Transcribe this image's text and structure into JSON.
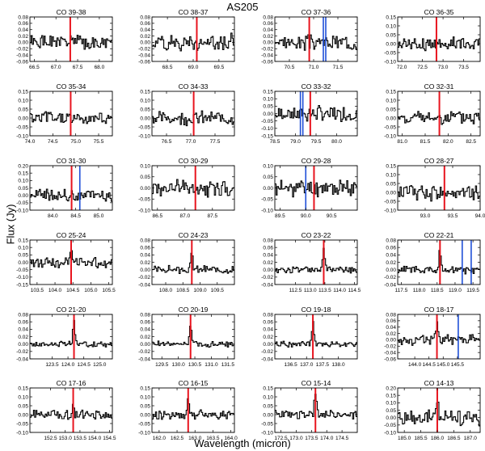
{
  "figure": {
    "title": "AS205",
    "xlabel": "Wavelength (micron)",
    "ylabel": "Flux (Jy)"
  },
  "colors": {
    "spectrum": "#000000",
    "co_line": "#e8141e",
    "blend_line": "#1f4fd8"
  },
  "chart_data": [
    {
      "type": "line",
      "title": "CO 39-38",
      "xlim": [
        66.4,
        68.3
      ],
      "ylim": [
        -0.06,
        0.08
      ],
      "xticks": [
        "66.5",
        "67.0",
        "67.5",
        "68.0"
      ],
      "yticks": [
        "-0.06",
        "-0.04",
        "-0.02",
        "0.00",
        "0.02",
        "0.04",
        "0.06",
        "0.08"
      ],
      "co_line": 67.33,
      "blends": [],
      "noise": 0.018,
      "peak": 0.0,
      "seed": 1
    },
    {
      "type": "line",
      "title": "CO 38-37",
      "xlim": [
        68.2,
        69.8
      ],
      "ylim": [
        -0.06,
        0.08
      ],
      "xticks": [
        "68.5",
        "69.0",
        "69.5"
      ],
      "yticks": [
        "-0.06",
        "-0.04",
        "-0.02",
        "0.00",
        "0.02",
        "0.04",
        "0.06",
        "0.08"
      ],
      "co_line": 69.07,
      "blends": [],
      "noise": 0.02,
      "peak": 0.0,
      "seed": 2
    },
    {
      "type": "line",
      "title": "CO 37-36",
      "xlim": [
        70.2,
        71.9
      ],
      "ylim": [
        -0.06,
        0.08
      ],
      "xticks": [
        "70.5",
        "71.0",
        "71.5"
      ],
      "yticks": [
        "-0.06",
        "-0.04",
        "-0.02",
        "0.00",
        "0.02",
        "0.04",
        "0.06",
        "0.08"
      ],
      "co_line": 70.91,
      "blends": [
        71.2,
        71.25
      ],
      "noise": 0.018,
      "peak": 0.0,
      "seed": 3
    },
    {
      "type": "line",
      "title": "CO 36-35",
      "xlim": [
        71.9,
        73.9
      ],
      "ylim": [
        -0.1,
        0.15
      ],
      "xticks": [
        "72.0",
        "72.5",
        "73.0",
        "73.5"
      ],
      "yticks": [
        "-0.10",
        "-0.05",
        "0.00",
        "0.05",
        "0.10",
        "0.15"
      ],
      "co_line": 72.84,
      "blends": [],
      "noise": 0.03,
      "peak": 0.0,
      "seed": 4
    },
    {
      "type": "line",
      "title": "CO 35-34",
      "xlim": [
        74.0,
        75.8
      ],
      "ylim": [
        -0.1,
        0.15
      ],
      "xticks": [
        "74.0",
        "74.5",
        "75.0",
        "75.5"
      ],
      "yticks": [
        "-0.10",
        "-0.05",
        "0.00",
        "0.05",
        "0.10",
        "0.15"
      ],
      "co_line": 74.89,
      "blends": [],
      "noise": 0.03,
      "peak": 0.0,
      "seed": 5
    },
    {
      "type": "line",
      "title": "CO 34-33",
      "xlim": [
        76.2,
        77.9
      ],
      "ylim": [
        -0.1,
        0.15
      ],
      "xticks": [
        "76.5",
        "77.0",
        "77.5"
      ],
      "yticks": [
        "-0.10",
        "-0.05",
        "0.00",
        "0.05",
        "0.10",
        "0.15"
      ],
      "co_line": 77.06,
      "blends": [],
      "noise": 0.03,
      "peak": 0.0,
      "seed": 6
    },
    {
      "type": "line",
      "title": "CO 33-32",
      "xlim": [
        78.5,
        80.5
      ],
      "ylim": [
        -0.15,
        0.15
      ],
      "xticks": [
        "78.5",
        "79.0",
        "79.5",
        "80.0"
      ],
      "yticks": [
        "-0.15",
        "-0.10",
        "-0.05",
        "0.00",
        "0.05",
        "0.10",
        "0.15"
      ],
      "co_line": 79.36,
      "blends": [
        79.12,
        79.18
      ],
      "noise": 0.04,
      "peak": 0.0,
      "seed": 7
    },
    {
      "type": "line",
      "title": "CO 32-31",
      "xlim": [
        80.9,
        82.7
      ],
      "ylim": [
        -0.1,
        0.15
      ],
      "xticks": [
        "81.0",
        "81.5",
        "82.0",
        "82.5"
      ],
      "yticks": [
        "-0.10",
        "-0.05",
        "0.00",
        "0.05",
        "0.10",
        "0.15"
      ],
      "co_line": 81.81,
      "blends": [],
      "noise": 0.03,
      "peak": 0.0,
      "seed": 8
    },
    {
      "type": "line",
      "title": "CO 31-30",
      "xlim": [
        83.5,
        85.3
      ],
      "ylim": [
        -0.1,
        0.2
      ],
      "xticks": [
        "84.0",
        "84.5",
        "85.0"
      ],
      "yticks": [
        "-0.10",
        "-0.05",
        "0.00",
        "0.05",
        "0.10",
        "0.15",
        "0.20"
      ],
      "co_line": 84.41,
      "blends": [
        84.59
      ],
      "noise": 0.035,
      "peak": 0.0,
      "seed": 9
    },
    {
      "type": "line",
      "title": "CO 30-29",
      "xlim": [
        86.4,
        87.9
      ],
      "ylim": [
        -0.1,
        0.1
      ],
      "xticks": [
        "86.5",
        "87.0",
        "87.5"
      ],
      "yticks": [
        "-0.10",
        "-0.05",
        "0.00",
        "0.05",
        "0.10"
      ],
      "co_line": 87.19,
      "blends": [],
      "noise": 0.03,
      "peak": 0.0,
      "seed": 10
    },
    {
      "type": "line",
      "title": "CO 29-28",
      "xlim": [
        89.4,
        91.0
      ],
      "ylim": [
        -0.1,
        0.1
      ],
      "xticks": [
        "89.5",
        "90.0",
        "90.5"
      ],
      "yticks": [
        "-0.10",
        "-0.05",
        "0.00",
        "0.05",
        "0.10"
      ],
      "co_line": 90.16,
      "blends": [
        90.0
      ],
      "noise": 0.03,
      "peak": 0.0,
      "seed": 11
    },
    {
      "type": "line",
      "title": "CO 28-27",
      "xlim": [
        92.5,
        94.0
      ],
      "ylim": [
        -0.1,
        0.15
      ],
      "xticks": [
        "93.0",
        "93.5",
        "94.0"
      ],
      "yticks": [
        "-0.10",
        "-0.05",
        "0.00",
        "0.05",
        "0.10",
        "0.15"
      ],
      "co_line": 93.35,
      "blends": [],
      "noise": 0.035,
      "peak": 0.0,
      "seed": 12
    },
    {
      "type": "line",
      "title": "CO 25-24",
      "xlim": [
        103.3,
        105.6
      ],
      "ylim": [
        -0.15,
        0.15
      ],
      "xticks": [
        "103.5",
        "104.0",
        "104.5",
        "105.0",
        "105.5"
      ],
      "yticks": [
        "-0.15",
        "-0.10",
        "-0.05",
        "0.00",
        "0.05",
        "0.10",
        "0.15"
      ],
      "co_line": 104.45,
      "blends": [],
      "noise": 0.03,
      "peak": 0.07,
      "seed": 13
    },
    {
      "type": "line",
      "title": "CO 24-23",
      "xlim": [
        107.6,
        110.0
      ],
      "ylim": [
        -0.04,
        0.08
      ],
      "xticks": [
        "108.0",
        "108.5",
        "109.0",
        "109.5"
      ],
      "yticks": [
        "-0.04",
        "-0.02",
        "0.00",
        "0.02",
        "0.04",
        "0.06",
        "0.08"
      ],
      "co_line": 108.76,
      "blends": [],
      "noise": 0.008,
      "peak": 0.04,
      "seed": 14
    },
    {
      "type": "line",
      "title": "CO 23-22",
      "xlim": [
        111.8,
        114.6
      ],
      "ylim": [
        -0.04,
        0.08
      ],
      "xticks": [
        "112.5",
        "113.0",
        "113.5",
        "114.0",
        "114.5"
      ],
      "yticks": [
        "-0.04",
        "-0.02",
        "0.00",
        "0.02",
        "0.04",
        "0.06",
        "0.08"
      ],
      "co_line": 113.46,
      "blends": [],
      "noise": 0.007,
      "peak": 0.055,
      "seed": 15
    },
    {
      "type": "line",
      "title": "CO 22-21",
      "xlim": [
        117.4,
        119.7
      ],
      "ylim": [
        -0.04,
        0.08
      ],
      "xticks": [
        "117.5",
        "118.0",
        "118.5",
        "119.0",
        "119.5"
      ],
      "yticks": [
        "-0.04",
        "-0.02",
        "0.00",
        "0.02",
        "0.04",
        "0.06",
        "0.08"
      ],
      "co_line": 118.58,
      "blends": [
        119.2,
        119.45
      ],
      "noise": 0.008,
      "peak": 0.05,
      "seed": 16
    },
    {
      "type": "line",
      "title": "CO 21-20",
      "xlim": [
        122.8,
        125.4
      ],
      "ylim": [
        -0.04,
        0.08
      ],
      "xticks": [
        "123.5",
        "124.0",
        "124.5",
        "125.0"
      ],
      "yticks": [
        "-0.04",
        "-0.02",
        "0.00",
        "0.02",
        "0.04",
        "0.06",
        "0.08"
      ],
      "co_line": 124.19,
      "blends": [],
      "noise": 0.006,
      "peak": 0.06,
      "seed": 17
    },
    {
      "type": "line",
      "title": "CO 20-19",
      "xlim": [
        129.2,
        131.7
      ],
      "ylim": [
        -0.04,
        0.08
      ],
      "xticks": [
        "129.5",
        "130.0",
        "130.5",
        "131.0",
        "131.5"
      ],
      "yticks": [
        "-0.04",
        "-0.02",
        "0.00",
        "0.02",
        "0.04",
        "0.06",
        "0.08"
      ],
      "co_line": 130.37,
      "blends": [],
      "noise": 0.006,
      "peak": 0.055,
      "seed": 18
    },
    {
      "type": "line",
      "title": "CO 19-18",
      "xlim": [
        136.0,
        138.6
      ],
      "ylim": [
        -0.04,
        0.08
      ],
      "xticks": [
        "136.5",
        "137.0",
        "137.5",
        "138.0"
      ],
      "yticks": [
        "-0.04",
        "-0.02",
        "0.00",
        "0.02",
        "0.04",
        "0.06",
        "0.08"
      ],
      "co_line": 137.2,
      "blends": [],
      "noise": 0.006,
      "peak": 0.06,
      "seed": 19
    },
    {
      "type": "line",
      "title": "CO 18-17",
      "xlim": [
        143.4,
        146.3
      ],
      "ylim": [
        -0.06,
        0.08
      ],
      "xticks": [
        "144.0",
        "144.5",
        "145.0",
        "145.5"
      ],
      "yticks": [
        "-0.06",
        "-0.04",
        "-0.02",
        "0.00",
        "0.02",
        "0.04",
        "0.06",
        "0.08"
      ],
      "co_line": 144.78,
      "blends": [
        145.53
      ],
      "noise": 0.012,
      "peak": 0.05,
      "seed": 20
    },
    {
      "type": "line",
      "title": "CO 17-16",
      "xlim": [
        151.8,
        154.6
      ],
      "ylim": [
        -0.1,
        0.15
      ],
      "xticks": [
        "152.5",
        "153.0",
        "153.5",
        "154.0",
        "154.5"
      ],
      "yticks": [
        "-0.10",
        "-0.05",
        "0.00",
        "0.05",
        "0.10",
        "0.15"
      ],
      "co_line": 153.27,
      "blends": [],
      "noise": 0.02,
      "peak": 0.07,
      "seed": 21
    },
    {
      "type": "line",
      "title": "CO 16-15",
      "xlim": [
        161.8,
        164.1
      ],
      "ylim": [
        -0.1,
        0.15
      ],
      "xticks": [
        "162.0",
        "162.5",
        "163.0",
        "163.5",
        "164.0"
      ],
      "yticks": [
        "-0.10",
        "-0.05",
        "0.00",
        "0.05",
        "0.10",
        "0.15"
      ],
      "co_line": 162.81,
      "blends": [],
      "noise": 0.02,
      "peak": 0.08,
      "seed": 22
    },
    {
      "type": "line",
      "title": "CO 15-14",
      "xlim": [
        172.3,
        175.0
      ],
      "ylim": [
        -0.1,
        0.15
      ],
      "xticks": [
        "172.5",
        "173.0",
        "173.5",
        "174.0",
        "174.5"
      ],
      "yticks": [
        "-0.10",
        "-0.05",
        "0.00",
        "0.05",
        "0.10",
        "0.15"
      ],
      "co_line": 173.63,
      "blends": [],
      "noise": 0.02,
      "peak": 0.11,
      "seed": 23
    },
    {
      "type": "line",
      "title": "CO 14-13",
      "xlim": [
        184.8,
        187.3
      ],
      "ylim": [
        -0.1,
        0.2
      ],
      "xticks": [
        "185.0",
        "185.5",
        "186.0",
        "186.5",
        "187.0"
      ],
      "yticks": [
        "-0.10",
        "-0.05",
        "0.00",
        "0.05",
        "0.10",
        "0.15",
        "0.20"
      ],
      "co_line": 186.0,
      "blends": [],
      "noise": 0.04,
      "peak": 0.12,
      "seed": 24
    }
  ]
}
